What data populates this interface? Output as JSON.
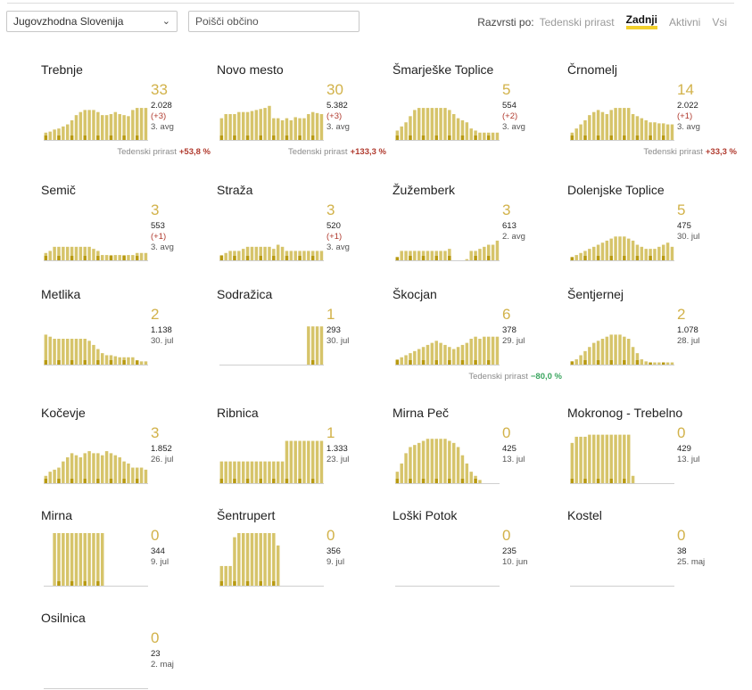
{
  "filters": {
    "region": "Jugovzhodna Slovenija",
    "search_placeholder": "Poišči občino",
    "sort_label": "Razvrsti po:",
    "sort_options": [
      "Tedenski prirast",
      "Zadnji",
      "Aktivni",
      "Vsi"
    ],
    "sort_active": "Zadnji"
  },
  "colors": {
    "bar": "#d6c46a",
    "bar_dark": "#b89a12",
    "accent": "#f2d02b",
    "up": "#b03a2e",
    "down": "#3aa55f",
    "big_number": "#d2b24a"
  },
  "growth_label": "Tedenski prirast",
  "municipalities": [
    {
      "name": "Trebnje",
      "active": "33",
      "total": "2.028",
      "diff": "(+3)",
      "date": "3. avg",
      "growth": "+53,8 %",
      "growth_dir": "up",
      "bars": [
        8,
        9,
        11,
        12,
        14,
        16,
        20,
        25,
        28,
        30,
        30,
        30,
        28,
        25,
        25,
        26,
        28,
        26,
        25,
        24,
        30,
        32,
        32,
        32
      ]
    },
    {
      "name": "Novo mesto",
      "active": "30",
      "total": "5.382",
      "diff": "(+3)",
      "date": "3. avg",
      "growth": "+133,3 %",
      "growth_dir": "up",
      "bars": [
        22,
        26,
        26,
        26,
        28,
        28,
        28,
        29,
        30,
        31,
        32,
        34,
        22,
        22,
        20,
        22,
        20,
        23,
        22,
        22,
        26,
        28,
        27,
        26
      ]
    },
    {
      "name": "Šmarješke Toplice",
      "active": "5",
      "total": "554",
      "diff": "(+2)",
      "date": "3. avg",
      "growth": "",
      "growth_dir": "",
      "bars": [
        10,
        14,
        18,
        24,
        30,
        32,
        32,
        32,
        32,
        32,
        32,
        32,
        30,
        26,
        22,
        20,
        18,
        12,
        10,
        8,
        8,
        8,
        8,
        8
      ]
    },
    {
      "name": "Črnomelj",
      "active": "14",
      "total": "2.022",
      "diff": "(+1)",
      "date": "3. avg",
      "growth": "+33,3 %",
      "growth_dir": "up",
      "bars": [
        8,
        12,
        16,
        20,
        25,
        28,
        30,
        28,
        26,
        30,
        32,
        32,
        32,
        32,
        26,
        24,
        22,
        20,
        18,
        18,
        17,
        17,
        16,
        16
      ]
    },
    {
      "name": "Semič",
      "active": "3",
      "total": "553",
      "diff": "(+1)",
      "date": "3. avg",
      "growth": "",
      "growth_dir": "",
      "bars": [
        8,
        10,
        14,
        14,
        14,
        14,
        14,
        14,
        14,
        14,
        14,
        12,
        10,
        6,
        6,
        6,
        6,
        6,
        6,
        6,
        6,
        8,
        8,
        8
      ]
    },
    {
      "name": "Straža",
      "active": "3",
      "total": "520",
      "diff": "(+1)",
      "date": "3. avg",
      "growth": "",
      "growth_dir": "",
      "bars": [
        6,
        8,
        10,
        10,
        10,
        12,
        14,
        14,
        14,
        14,
        14,
        14,
        12,
        16,
        14,
        10,
        10,
        10,
        10,
        10,
        10,
        10,
        10,
        10
      ]
    },
    {
      "name": "Žužemberk",
      "active": "3",
      "total": "613",
      "diff": "",
      "date": "2. avg",
      "growth": "",
      "growth_dir": "",
      "bars": [
        4,
        10,
        10,
        10,
        10,
        10,
        10,
        10,
        10,
        10,
        10,
        10,
        12,
        0,
        0,
        0,
        2,
        10,
        10,
        12,
        14,
        16,
        16,
        20
      ]
    },
    {
      "name": "Dolenjske Toplice",
      "active": "5",
      "total": "475",
      "diff": "",
      "date": "30. jul",
      "growth": "",
      "growth_dir": "",
      "bars": [
        4,
        6,
        8,
        10,
        12,
        14,
        16,
        18,
        20,
        22,
        24,
        24,
        24,
        22,
        20,
        16,
        14,
        12,
        12,
        12,
        14,
        16,
        18,
        14
      ]
    },
    {
      "name": "Metlika",
      "active": "2",
      "total": "1.138",
      "diff": "",
      "date": "30. jul",
      "growth": "",
      "growth_dir": "",
      "bars": [
        30,
        28,
        26,
        26,
        26,
        26,
        26,
        26,
        26,
        26,
        24,
        20,
        16,
        12,
        10,
        10,
        9,
        8,
        8,
        8,
        8,
        5,
        4,
        4
      ]
    },
    {
      "name": "Sodražica",
      "active": "1",
      "total": "293",
      "diff": "",
      "date": "30. jul",
      "growth": "",
      "growth_dir": "",
      "bars": [
        0,
        0,
        0,
        0,
        0,
        0,
        0,
        0,
        0,
        0,
        0,
        0,
        0,
        0,
        0,
        0,
        0,
        0,
        0,
        0,
        38,
        38,
        38,
        38
      ]
    },
    {
      "name": "Škocjan",
      "active": "6",
      "total": "378",
      "diff": "",
      "date": "29. jul",
      "growth": "−80,0 %",
      "growth_dir": "down",
      "bars": [
        6,
        8,
        10,
        12,
        14,
        16,
        18,
        20,
        22,
        24,
        22,
        20,
        18,
        16,
        18,
        20,
        22,
        26,
        28,
        26,
        28,
        28,
        28,
        28
      ]
    },
    {
      "name": "Šentjernej",
      "active": "2",
      "total": "1.078",
      "diff": "",
      "date": "28. jul",
      "growth": "",
      "growth_dir": "",
      "bars": [
        4,
        6,
        10,
        14,
        18,
        22,
        24,
        26,
        28,
        30,
        30,
        30,
        28,
        26,
        18,
        12,
        6,
        4,
        3,
        3,
        3,
        3,
        3,
        3
      ]
    },
    {
      "name": "Kočevje",
      "active": "3",
      "total": "1.852",
      "diff": "",
      "date": "26. jul",
      "growth": "",
      "growth_dir": "",
      "bars": [
        8,
        12,
        14,
        16,
        22,
        26,
        30,
        28,
        26,
        30,
        32,
        30,
        30,
        28,
        32,
        30,
        28,
        26,
        22,
        20,
        16,
        16,
        16,
        14
      ]
    },
    {
      "name": "Ribnica",
      "active": "1",
      "total": "1.333",
      "diff": "",
      "date": "23. jul",
      "growth": "",
      "growth_dir": "",
      "bars": [
        22,
        22,
        22,
        22,
        22,
        22,
        22,
        22,
        22,
        22,
        22,
        22,
        22,
        22,
        22,
        42,
        42,
        42,
        42,
        42,
        42,
        42,
        42,
        42
      ]
    },
    {
      "name": "Mirna Peč",
      "active": "0",
      "total": "425",
      "diff": "",
      "date": "13. jul",
      "growth": "",
      "growth_dir": "",
      "bars": [
        12,
        20,
        30,
        36,
        38,
        40,
        42,
        44,
        44,
        44,
        44,
        44,
        42,
        40,
        36,
        28,
        20,
        12,
        8,
        4,
        0,
        0,
        0,
        0
      ]
    },
    {
      "name": "Mokronog - Trebelno",
      "active": "0",
      "total": "429",
      "diff": "",
      "date": "13. jul",
      "growth": "",
      "growth_dir": "",
      "bars": [
        40,
        46,
        46,
        46,
        48,
        48,
        48,
        48,
        48,
        48,
        48,
        48,
        48,
        48,
        8,
        0,
        0,
        0,
        0,
        0,
        0,
        0,
        0,
        0
      ]
    },
    {
      "name": "Mirna",
      "active": "0",
      "total": "344",
      "diff": "",
      "date": "9. jul",
      "growth": "",
      "growth_dir": "",
      "bars": [
        0,
        0,
        52,
        52,
        52,
        52,
        52,
        52,
        52,
        52,
        52,
        52,
        52,
        52,
        0,
        0,
        0,
        0,
        0,
        0,
        0,
        0,
        0,
        0
      ]
    },
    {
      "name": "Šentrupert",
      "active": "0",
      "total": "356",
      "diff": "",
      "date": "9. jul",
      "growth": "",
      "growth_dir": "",
      "bars": [
        20,
        20,
        20,
        48,
        52,
        52,
        52,
        52,
        52,
        52,
        52,
        52,
        52,
        40,
        0,
        0,
        0,
        0,
        0,
        0,
        0,
        0,
        0,
        0
      ]
    },
    {
      "name": "Loški Potok",
      "active": "0",
      "total": "235",
      "diff": "",
      "date": "10. jun",
      "growth": "",
      "growth_dir": "",
      "bars": [
        0,
        0,
        0,
        0,
        0,
        0,
        0,
        0,
        0,
        0,
        0,
        0,
        0,
        0,
        0,
        0,
        0,
        0,
        0,
        0,
        0,
        0,
        0,
        0
      ]
    },
    {
      "name": "Kostel",
      "active": "0",
      "total": "38",
      "diff": "",
      "date": "25. maj",
      "growth": "",
      "growth_dir": "",
      "bars": [
        0,
        0,
        0,
        0,
        0,
        0,
        0,
        0,
        0,
        0,
        0,
        0,
        0,
        0,
        0,
        0,
        0,
        0,
        0,
        0,
        0,
        0,
        0,
        0
      ]
    },
    {
      "name": "Osilnica",
      "active": "0",
      "total": "23",
      "diff": "",
      "date": "2. maj",
      "growth": "",
      "growth_dir": "",
      "bars": [
        0,
        0,
        0,
        0,
        0,
        0,
        0,
        0,
        0,
        0,
        0,
        0,
        0,
        0,
        0,
        0,
        0,
        0,
        0,
        0,
        0,
        0,
        0,
        0
      ]
    }
  ]
}
